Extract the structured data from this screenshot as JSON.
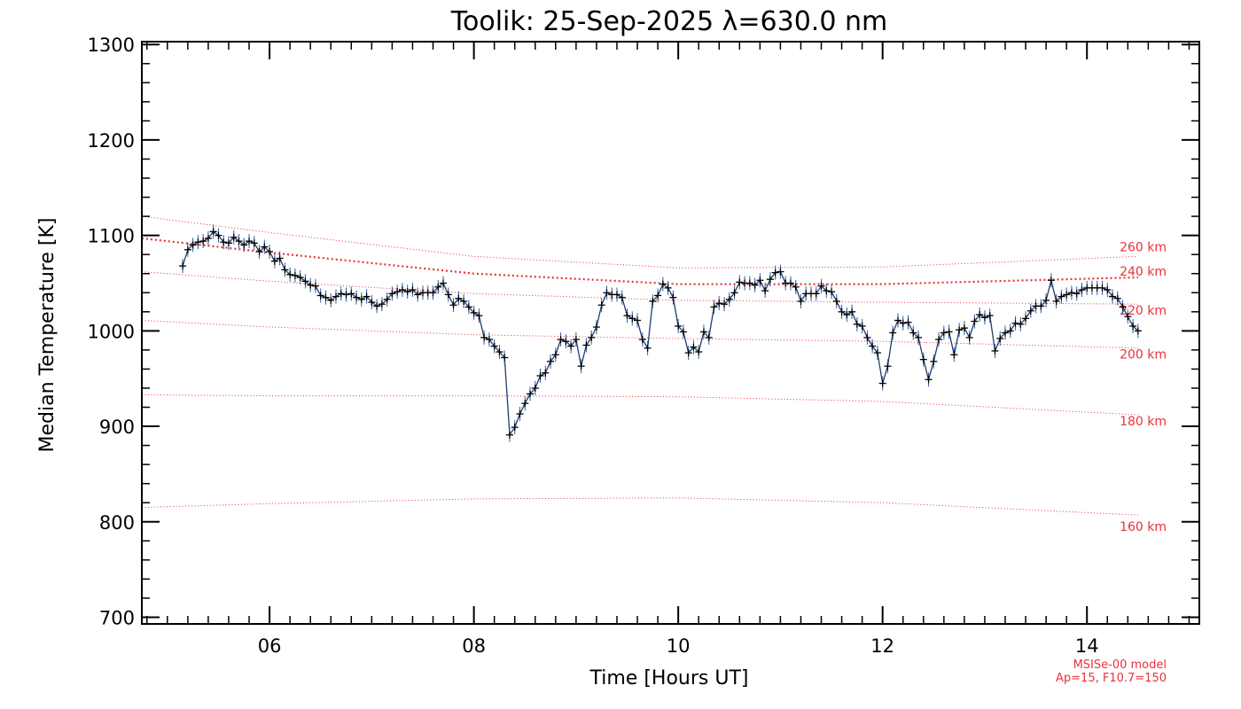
{
  "chart_data": {
    "type": "line",
    "title": "Toolik: 25-Sep-2025 λ=630.0 nm",
    "xlabel": "Time [Hours UT]",
    "ylabel": "Median Temperature [K]",
    "xlim": [
      4.75,
      15.1
    ],
    "ylim": [
      693,
      1303
    ],
    "x_ticks": [
      6,
      8,
      10,
      12,
      14
    ],
    "x_tick_labels": [
      "06",
      "08",
      "10",
      "12",
      "14"
    ],
    "y_ticks": [
      700,
      800,
      900,
      1000,
      1100,
      1200,
      1300
    ],
    "y_tick_labels": [
      "700",
      "800",
      "900",
      "1000",
      "1100",
      "1200",
      "1300"
    ],
    "colors": {
      "data": "#1f3d6b",
      "markers": "#000000",
      "model": "#e8323a"
    },
    "series": [
      {
        "values": [
          [
            5.15,
            1068
          ],
          [
            5.2,
            1085
          ],
          [
            5.25,
            1090
          ],
          [
            5.3,
            1093
          ],
          [
            5.35,
            1094
          ],
          [
            5.4,
            1097
          ],
          [
            5.45,
            1104
          ],
          [
            5.5,
            1100
          ],
          [
            5.55,
            1093
          ],
          [
            5.6,
            1092
          ],
          [
            5.65,
            1098
          ],
          [
            5.7,
            1094
          ],
          [
            5.75,
            1090
          ],
          [
            5.8,
            1094
          ],
          [
            5.85,
            1092
          ],
          [
            5.9,
            1083
          ],
          [
            5.95,
            1088
          ],
          [
            6.0,
            1083
          ],
          [
            6.05,
            1073
          ],
          [
            6.1,
            1076
          ],
          [
            6.15,
            1064
          ],
          [
            6.2,
            1059
          ],
          [
            6.25,
            1058
          ],
          [
            6.3,
            1056
          ],
          [
            6.35,
            1052
          ],
          [
            6.4,
            1048
          ],
          [
            6.45,
            1047
          ],
          [
            6.5,
            1037
          ],
          [
            6.55,
            1035
          ],
          [
            6.6,
            1032
          ],
          [
            6.65,
            1036
          ],
          [
            6.7,
            1039
          ],
          [
            6.75,
            1038
          ],
          [
            6.8,
            1039
          ],
          [
            6.85,
            1035
          ],
          [
            6.9,
            1033
          ],
          [
            6.95,
            1036
          ],
          [
            7.0,
            1030
          ],
          [
            7.05,
            1026
          ],
          [
            7.1,
            1028
          ],
          [
            7.15,
            1033
          ],
          [
            7.2,
            1039
          ],
          [
            7.25,
            1041
          ],
          [
            7.3,
            1043
          ],
          [
            7.35,
            1041
          ],
          [
            7.4,
            1043
          ],
          [
            7.45,
            1038
          ],
          [
            7.5,
            1040
          ],
          [
            7.55,
            1040
          ],
          [
            7.6,
            1040
          ],
          [
            7.65,
            1046
          ],
          [
            7.7,
            1050
          ],
          [
            7.75,
            1038
          ],
          [
            7.8,
            1027
          ],
          [
            7.85,
            1034
          ],
          [
            7.9,
            1031
          ],
          [
            7.95,
            1025
          ],
          [
            8.0,
            1019
          ],
          [
            8.05,
            1016
          ],
          [
            8.1,
            993
          ],
          [
            8.15,
            991
          ],
          [
            8.2,
            984
          ],
          [
            8.25,
            978
          ],
          [
            8.3,
            972
          ],
          [
            8.35,
            891
          ],
          [
            8.4,
            899
          ],
          [
            8.45,
            913
          ],
          [
            8.5,
            924
          ],
          [
            8.55,
            934
          ],
          [
            8.6,
            940
          ],
          [
            8.65,
            953
          ],
          [
            8.7,
            956
          ],
          [
            8.75,
            968
          ],
          [
            8.8,
            975
          ],
          [
            8.85,
            991
          ],
          [
            8.9,
            989
          ],
          [
            8.95,
            984
          ],
          [
            9.0,
            991
          ],
          [
            9.05,
            963
          ],
          [
            9.1,
            985
          ],
          [
            9.15,
            993
          ],
          [
            9.2,
            1004
          ],
          [
            9.25,
            1027
          ],
          [
            9.3,
            1040
          ],
          [
            9.35,
            1038
          ],
          [
            9.4,
            1038
          ],
          [
            9.45,
            1035
          ],
          [
            9.5,
            1016
          ],
          [
            9.55,
            1013
          ],
          [
            9.6,
            1011
          ],
          [
            9.65,
            991
          ],
          [
            9.7,
            982
          ],
          [
            9.75,
            1031
          ],
          [
            9.8,
            1037
          ],
          [
            9.85,
            1049
          ],
          [
            9.9,
            1045
          ],
          [
            9.95,
            1035
          ],
          [
            10.0,
            1005
          ],
          [
            10.05,
            999
          ],
          [
            10.1,
            977
          ],
          [
            10.15,
            983
          ],
          [
            10.2,
            978
          ],
          [
            10.25,
            999
          ],
          [
            10.3,
            993
          ],
          [
            10.35,
            1025
          ],
          [
            10.4,
            1029
          ],
          [
            10.45,
            1028
          ],
          [
            10.5,
            1033
          ],
          [
            10.55,
            1040
          ],
          [
            10.6,
            1051
          ],
          [
            10.65,
            1050
          ],
          [
            10.7,
            1050
          ],
          [
            10.75,
            1048
          ],
          [
            10.8,
            1053
          ],
          [
            10.85,
            1042
          ],
          [
            10.9,
            1054
          ],
          [
            10.95,
            1061
          ],
          [
            11.0,
            1062
          ],
          [
            11.05,
            1050
          ],
          [
            11.1,
            1050
          ],
          [
            11.15,
            1046
          ],
          [
            11.2,
            1031
          ],
          [
            11.25,
            1039
          ],
          [
            11.3,
            1039
          ],
          [
            11.35,
            1039
          ],
          [
            11.4,
            1047
          ],
          [
            11.45,
            1042
          ],
          [
            11.5,
            1041
          ],
          [
            11.55,
            1031
          ],
          [
            11.6,
            1020
          ],
          [
            11.65,
            1017
          ],
          [
            11.7,
            1020
          ],
          [
            11.75,
            1007
          ],
          [
            11.8,
            1005
          ],
          [
            11.85,
            993
          ],
          [
            11.9,
            984
          ],
          [
            11.95,
            977
          ],
          [
            12.0,
            945
          ],
          [
            12.05,
            963
          ],
          [
            12.1,
            998
          ],
          [
            12.15,
            1011
          ],
          [
            12.2,
            1008
          ],
          [
            12.25,
            1009
          ],
          [
            12.3,
            998
          ],
          [
            12.35,
            993
          ],
          [
            12.4,
            970
          ],
          [
            12.45,
            949
          ],
          [
            12.5,
            968
          ],
          [
            12.55,
            991
          ],
          [
            12.6,
            998
          ],
          [
            12.65,
            999
          ],
          [
            12.7,
            975
          ],
          [
            12.75,
            1001
          ],
          [
            12.8,
            1003
          ],
          [
            12.85,
            993
          ],
          [
            12.9,
            1010
          ],
          [
            12.95,
            1017
          ],
          [
            13.0,
            1014
          ],
          [
            13.05,
            1016
          ],
          [
            13.1,
            979
          ],
          [
            13.15,
            992
          ],
          [
            13.2,
            998
          ],
          [
            13.25,
            1000
          ],
          [
            13.3,
            1008
          ],
          [
            13.35,
            1007
          ],
          [
            13.4,
            1013
          ],
          [
            13.45,
            1021
          ],
          [
            13.5,
            1026
          ],
          [
            13.55,
            1026
          ],
          [
            13.6,
            1032
          ],
          [
            13.65,
            1053
          ],
          [
            13.7,
            1031
          ],
          [
            13.75,
            1036
          ],
          [
            13.8,
            1038
          ],
          [
            13.85,
            1040
          ],
          [
            13.9,
            1039
          ],
          [
            13.95,
            1043
          ],
          [
            14.0,
            1045
          ],
          [
            14.05,
            1045
          ],
          [
            14.1,
            1045
          ],
          [
            14.15,
            1045
          ],
          [
            14.2,
            1043
          ],
          [
            14.25,
            1036
          ],
          [
            14.3,
            1034
          ],
          [
            14.35,
            1025
          ],
          [
            14.4,
            1015
          ],
          [
            14.45,
            1005
          ],
          [
            14.5,
            1000
          ]
        ]
      }
    ],
    "model_curves": [
      {
        "label": "260 km",
        "values": [
          [
            4.75,
            1120
          ],
          [
            6.0,
            1103
          ],
          [
            8.0,
            1078
          ],
          [
            10.0,
            1066
          ],
          [
            12.0,
            1067
          ],
          [
            14.5,
            1078
          ]
        ]
      },
      {
        "label": "240 km",
        "values": [
          [
            4.75,
            1097
          ],
          [
            6.0,
            1082
          ],
          [
            8.0,
            1060
          ],
          [
            10.0,
            1049
          ],
          [
            12.0,
            1049
          ],
          [
            14.5,
            1056
          ]
        ]
      },
      {
        "label": "220 km",
        "values": [
          [
            4.75,
            1062
          ],
          [
            6.0,
            1052
          ],
          [
            8.0,
            1039
          ],
          [
            10.0,
            1032
          ],
          [
            12.0,
            1030
          ],
          [
            14.5,
            1028
          ]
        ]
      },
      {
        "label": "200 km",
        "values": [
          [
            4.75,
            1011
          ],
          [
            6.0,
            1004
          ],
          [
            8.0,
            996
          ],
          [
            10.0,
            992
          ],
          [
            12.0,
            989
          ],
          [
            14.5,
            982
          ]
        ]
      },
      {
        "label": "180 km",
        "values": [
          [
            4.75,
            933
          ],
          [
            6.0,
            932
          ],
          [
            8.0,
            932
          ],
          [
            10.0,
            931
          ],
          [
            12.0,
            926
          ],
          [
            14.5,
            912
          ]
        ]
      },
      {
        "label": "160 km",
        "values": [
          [
            4.75,
            815
          ],
          [
            6.0,
            819
          ],
          [
            8.0,
            824
          ],
          [
            10.0,
            825
          ],
          [
            12.0,
            820
          ],
          [
            14.5,
            807
          ]
        ]
      }
    ],
    "model_note": [
      "MSISe-00 model",
      "Ap=15, F10.7=150"
    ]
  }
}
